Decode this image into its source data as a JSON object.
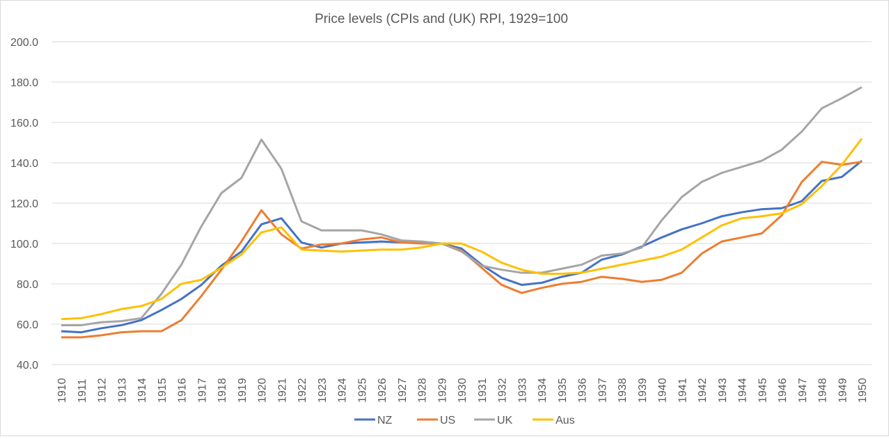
{
  "chart_data": {
    "type": "line",
    "title": "Price levels (CPIs and (UK) RPI, 1929=100",
    "xlabel": "",
    "ylabel": "",
    "ylim": [
      40,
      200
    ],
    "yticks": [
      "40.0",
      "60.0",
      "80.0",
      "100.0",
      "120.0",
      "140.0",
      "160.0",
      "180.0",
      "200.0"
    ],
    "grid": true,
    "legend": "bottom",
    "x": [
      1910,
      1911,
      1912,
      1913,
      1914,
      1915,
      1916,
      1917,
      1918,
      1919,
      1920,
      1921,
      1922,
      1923,
      1924,
      1925,
      1926,
      1927,
      1928,
      1929,
      1930,
      1931,
      1932,
      1933,
      1934,
      1935,
      1936,
      1937,
      1938,
      1939,
      1940,
      1941,
      1942,
      1943,
      1944,
      1945,
      1946,
      1947,
      1948,
      1949,
      1950
    ],
    "series": [
      {
        "name": "NZ",
        "color": "#4472c4",
        "values": [
          56.5,
          56,
          58,
          59.5,
          62,
          67,
          72.5,
          79.5,
          89,
          96,
          109.5,
          112.5,
          100.5,
          98,
          100,
          100.5,
          101,
          100.5,
          100.5,
          100,
          97.5,
          89.5,
          83,
          79.5,
          80.5,
          83.5,
          85.5,
          92,
          94.5,
          98.5,
          103,
          107,
          110,
          113.5,
          115.5,
          117,
          117.5,
          121,
          131,
          133,
          141
        ]
      },
      {
        "name": "US",
        "color": "#ed7d31",
        "values": [
          53.5,
          53.5,
          54.5,
          56,
          56.5,
          56.5,
          62,
          74,
          87,
          101,
          116.5,
          104.5,
          97.5,
          99.5,
          100,
          102,
          103,
          100.5,
          100,
          100,
          96.5,
          88,
          79.5,
          75.5,
          78,
          80,
          81,
          83.5,
          82.5,
          81,
          82,
          85.5,
          95,
          101,
          103,
          105,
          114,
          130.5,
          140.5,
          139,
          140.5
        ]
      },
      {
        "name": "UK",
        "color": "#a5a5a5",
        "values": [
          59.5,
          59.5,
          61,
          61.5,
          63,
          75,
          89.5,
          108.5,
          125,
          132.5,
          151.5,
          137,
          111,
          106.5,
          106.5,
          106.5,
          104.5,
          101.5,
          101,
          100,
          96,
          89,
          87,
          85.5,
          85.5,
          87.5,
          89.5,
          94,
          95,
          98,
          111.5,
          123,
          130.5,
          135,
          138,
          141,
          146.5,
          155.5,
          167,
          172,
          177.5
        ]
      },
      {
        "name": "Aus",
        "color": "#ffc000",
        "values": [
          62.5,
          63,
          65,
          67.5,
          69,
          72.5,
          80,
          82,
          88,
          94.5,
          105.5,
          108,
          97,
          96.5,
          96,
          96.5,
          97,
          97,
          98,
          100,
          100,
          96,
          90.5,
          87,
          85,
          85,
          85.5,
          87.5,
          89.5,
          91.5,
          93.5,
          97,
          103,
          109,
          112.5,
          113.5,
          115,
          119.5,
          128.5,
          139,
          152
        ]
      }
    ]
  }
}
